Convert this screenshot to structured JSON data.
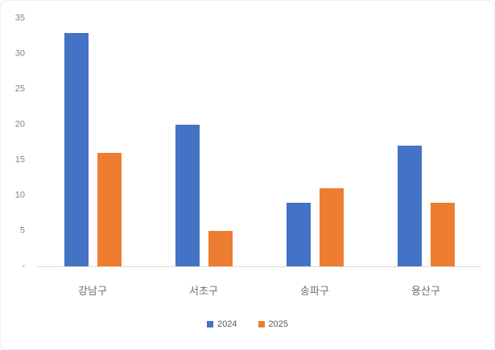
{
  "chart_data": {
    "type": "bar",
    "categories": [
      "강남구",
      "서초구",
      "송파구",
      "용산구"
    ],
    "series": [
      {
        "name": "2024",
        "color": "#4472C4",
        "values": [
          33,
          20,
          9,
          17
        ]
      },
      {
        "name": "2025",
        "color": "#ED7D31",
        "values": [
          16,
          5,
          11,
          9
        ]
      }
    ],
    "title": "",
    "xlabel": "",
    "ylabel": "",
    "ylim": [
      0,
      35
    ],
    "ytick_step": 5,
    "ytick_labels": [
      "-",
      "5",
      "10",
      "15",
      "20",
      "25",
      "30",
      "35"
    ],
    "grid": false,
    "legend_position": "bottom",
    "axis_line_color": "#d9d9d9",
    "tick_label_color": "#848484",
    "category_label_color": "#6f6f6f"
  }
}
